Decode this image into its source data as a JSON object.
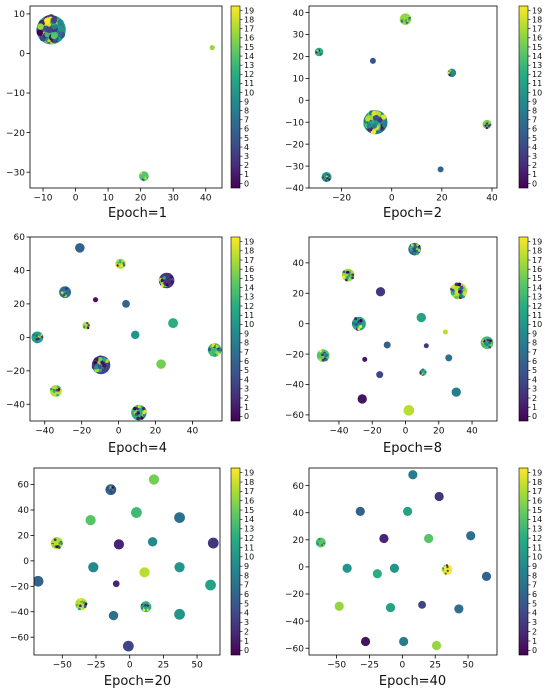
{
  "colormap": {
    "name": "viridis",
    "min": 0,
    "max": 19,
    "stops": [
      "#440154",
      "#472c7a",
      "#3b518b",
      "#2c718e",
      "#21908d",
      "#27ad81",
      "#5cc863",
      "#aadc32",
      "#fde725"
    ],
    "tick_labels": [
      "0",
      "1",
      "2",
      "3",
      "4",
      "5",
      "6",
      "7",
      "8",
      "9",
      "10",
      "11",
      "12",
      "13",
      "14",
      "15",
      "16",
      "17",
      "18",
      "19"
    ]
  },
  "chart_data": [
    {
      "type": "scatter",
      "caption": "Epoch=1",
      "xlim": [
        -14,
        45
      ],
      "ylim": [
        -34,
        12
      ],
      "xticks": [
        -10,
        0,
        10,
        20,
        30,
        40
      ],
      "yticks": [
        -30,
        -20,
        -10,
        0,
        10
      ],
      "clusters": [
        {
          "x": -7.5,
          "y": 6,
          "r": 4.5,
          "mixed": true,
          "c": 10
        },
        {
          "x": 21,
          "y": -31,
          "r": 1.5,
          "mixed": true,
          "c": 14
        },
        {
          "x": 42,
          "y": 1.5,
          "r": 0.8,
          "mixed": false,
          "c": 16
        }
      ]
    },
    {
      "type": "scatter",
      "caption": "Epoch=2",
      "xlim": [
        -33,
        42
      ],
      "ylim": [
        -40,
        43
      ],
      "xticks": [
        -20,
        0,
        20,
        40
      ],
      "yticks": [
        -40,
        -30,
        -20,
        -10,
        0,
        10,
        20,
        30,
        40
      ],
      "clusters": [
        {
          "x": 5.5,
          "y": 37,
          "r": 2.3,
          "mixed": true,
          "c": 16
        },
        {
          "x": -29,
          "y": 22,
          "r": 1.7,
          "mixed": true,
          "c": 12
        },
        {
          "x": -7.5,
          "y": 18,
          "r": 1.2,
          "mixed": false,
          "c": 5
        },
        {
          "x": 24,
          "y": 12.5,
          "r": 1.7,
          "mixed": true,
          "c": 9
        },
        {
          "x": -6.5,
          "y": -10,
          "r": 4.8,
          "mixed": true,
          "c": 8
        },
        {
          "x": 38,
          "y": -11,
          "r": 1.8,
          "mixed": true,
          "c": 15
        },
        {
          "x": 19.5,
          "y": -31.5,
          "r": 1.2,
          "mixed": false,
          "c": 6
        },
        {
          "x": -26,
          "y": -35,
          "r": 2.0,
          "mixed": true,
          "c": 10
        }
      ]
    },
    {
      "type": "scatter",
      "caption": "Epoch=4",
      "xlim": [
        -48,
        56
      ],
      "ylim": [
        -50,
        60
      ],
      "xticks": [
        -40,
        -20,
        0,
        20,
        40
      ],
      "yticks": [
        -40,
        -20,
        0,
        20,
        40,
        60
      ],
      "clusters": [
        {
          "x": -21,
          "y": 53.5,
          "r": 2.6,
          "mixed": false,
          "c": 6
        },
        {
          "x": 1,
          "y": 44,
          "r": 2.8,
          "mixed": true,
          "c": 17
        },
        {
          "x": -29,
          "y": 27,
          "r": 3.2,
          "mixed": true,
          "c": 7
        },
        {
          "x": 26,
          "y": 34,
          "r": 4.2,
          "mixed": true,
          "c": 3
        },
        {
          "x": -12.5,
          "y": 22.5,
          "r": 1.4,
          "mixed": false,
          "c": 1
        },
        {
          "x": 4,
          "y": 20,
          "r": 2.1,
          "mixed": false,
          "c": 6
        },
        {
          "x": 29.5,
          "y": 8.5,
          "r": 2.7,
          "mixed": false,
          "c": 12
        },
        {
          "x": -17.5,
          "y": 7,
          "r": 2.1,
          "mixed": true,
          "c": 17
        },
        {
          "x": 9,
          "y": 1.5,
          "r": 2.3,
          "mixed": false,
          "c": 10
        },
        {
          "x": -44,
          "y": 0,
          "r": 3.2,
          "mixed": true,
          "c": 11
        },
        {
          "x": 52,
          "y": -7.5,
          "r": 3.7,
          "mixed": true,
          "c": 13
        },
        {
          "x": -9.5,
          "y": -16.5,
          "r": 5.0,
          "mixed": true,
          "c": 4
        },
        {
          "x": 23,
          "y": -16,
          "r": 2.6,
          "mixed": false,
          "c": 15
        },
        {
          "x": -34,
          "y": -32,
          "r": 3.2,
          "mixed": true,
          "c": 17
        },
        {
          "x": 11,
          "y": -45,
          "r": 4.2,
          "mixed": true,
          "c": 12
        }
      ]
    },
    {
      "type": "scatter",
      "caption": "Epoch=8",
      "xlim": [
        -58,
        55
      ],
      "ylim": [
        -64,
        57
      ],
      "xticks": [
        -40,
        -20,
        0,
        20,
        40
      ],
      "yticks": [
        -60,
        -40,
        -20,
        0,
        20,
        40
      ],
      "clusters": [
        {
          "x": 5.5,
          "y": 49,
          "r": 3.8,
          "mixed": true,
          "c": 6
        },
        {
          "x": -34.5,
          "y": 32,
          "r": 3.8,
          "mixed": true,
          "c": 16
        },
        {
          "x": 32,
          "y": 21.5,
          "r": 5.0,
          "mixed": true,
          "c": 17
        },
        {
          "x": -15,
          "y": 21,
          "r": 2.8,
          "mixed": false,
          "c": 3
        },
        {
          "x": 9.5,
          "y": 4,
          "r": 2.8,
          "mixed": false,
          "c": 11
        },
        {
          "x": -28,
          "y": 0,
          "r": 4.2,
          "mixed": true,
          "c": 11
        },
        {
          "x": 24,
          "y": -5.5,
          "r": 1.0,
          "mixed": false,
          "c": 17
        },
        {
          "x": -11,
          "y": -14,
          "r": 2.1,
          "mixed": false,
          "c": 6
        },
        {
          "x": 12.5,
          "y": -14.5,
          "r": 1.0,
          "mixed": false,
          "c": 3
        },
        {
          "x": 49,
          "y": -12.5,
          "r": 3.8,
          "mixed": true,
          "c": 13
        },
        {
          "x": -49.5,
          "y": -21,
          "r": 3.8,
          "mixed": true,
          "c": 14
        },
        {
          "x": -24.5,
          "y": -23.5,
          "r": 1.0,
          "mixed": false,
          "c": 1
        },
        {
          "x": 26,
          "y": -22.5,
          "r": 2.1,
          "mixed": false,
          "c": 7
        },
        {
          "x": -15.5,
          "y": -33.5,
          "r": 2.1,
          "mixed": false,
          "c": 4
        },
        {
          "x": 10.5,
          "y": -32,
          "r": 2.1,
          "mixed": true,
          "c": 12
        },
        {
          "x": 30.5,
          "y": -45,
          "r": 2.8,
          "mixed": false,
          "c": 8
        },
        {
          "x": -26,
          "y": -49.5,
          "r": 2.8,
          "mixed": false,
          "c": 1
        },
        {
          "x": 2,
          "y": -57,
          "r": 3.2,
          "mixed": false,
          "c": 17
        }
      ]
    },
    {
      "type": "scatter",
      "caption": "Epoch=20",
      "xlim": [
        -71,
        67
      ],
      "ylim": [
        -74,
        73
      ],
      "xticks": [
        -50,
        -25,
        0,
        25,
        50
      ],
      "yticks": [
        -60,
        -40,
        -20,
        0,
        20,
        40,
        60
      ],
      "clusters": [
        {
          "x": 18,
          "y": 64,
          "r": 3.8,
          "mixed": false,
          "c": 15
        },
        {
          "x": -14,
          "y": 56,
          "r": 4.0,
          "mixed": true,
          "c": 5
        },
        {
          "x": 5,
          "y": 38,
          "r": 4.0,
          "mixed": false,
          "c": 13
        },
        {
          "x": -29,
          "y": 32,
          "r": 3.8,
          "mixed": false,
          "c": 14
        },
        {
          "x": 37,
          "y": 34,
          "r": 4.0,
          "mixed": false,
          "c": 7
        },
        {
          "x": 17,
          "y": 15,
          "r": 3.5,
          "mixed": false,
          "c": 9
        },
        {
          "x": -54,
          "y": 14,
          "r": 4.5,
          "mixed": true,
          "c": 17
        },
        {
          "x": -8,
          "y": 13,
          "r": 3.8,
          "mixed": false,
          "c": 2
        },
        {
          "x": 62,
          "y": 14,
          "r": 4.0,
          "mixed": false,
          "c": 3
        },
        {
          "x": -27,
          "y": -5,
          "r": 3.8,
          "mixed": false,
          "c": 9
        },
        {
          "x": 37,
          "y": -5,
          "r": 3.8,
          "mixed": false,
          "c": 10
        },
        {
          "x": 11,
          "y": -9,
          "r": 3.8,
          "mixed": false,
          "c": 17
        },
        {
          "x": -68,
          "y": -16,
          "r": 4.0,
          "mixed": false,
          "c": 6
        },
        {
          "x": -10,
          "y": -18,
          "r": 2.5,
          "mixed": false,
          "c": 2
        },
        {
          "x": 60,
          "y": -19,
          "r": 4.0,
          "mixed": false,
          "c": 11
        },
        {
          "x": -36,
          "y": -34,
          "r": 4.5,
          "mixed": true,
          "c": 17
        },
        {
          "x": 12,
          "y": -36,
          "r": 4.0,
          "mixed": true,
          "c": 12
        },
        {
          "x": -12,
          "y": -43,
          "r": 3.5,
          "mixed": false,
          "c": 7
        },
        {
          "x": 37,
          "y": -42,
          "r": 4.0,
          "mixed": false,
          "c": 10
        },
        {
          "x": -1,
          "y": -67,
          "r": 4.0,
          "mixed": false,
          "c": 4
        }
      ]
    },
    {
      "type": "scatter",
      "caption": "Epoch=40",
      "xlim": [
        -71,
        72
      ],
      "ylim": [
        -65,
        73
      ],
      "xticks": [
        -50,
        -25,
        0,
        25,
        50
      ],
      "yticks": [
        -60,
        -40,
        -20,
        0,
        20,
        40,
        60
      ],
      "clusters": [
        {
          "x": 8,
          "y": 68,
          "r": 3.5,
          "mixed": false,
          "c": 8
        },
        {
          "x": 28,
          "y": 52,
          "r": 3.5,
          "mixed": false,
          "c": 3
        },
        {
          "x": -32,
          "y": 41,
          "r": 3.5,
          "mixed": false,
          "c": 6
        },
        {
          "x": 4,
          "y": 41,
          "r": 3.5,
          "mixed": false,
          "c": 11
        },
        {
          "x": 52,
          "y": 23,
          "r": 3.5,
          "mixed": false,
          "c": 7
        },
        {
          "x": -14,
          "y": 21,
          "r": 3.5,
          "mixed": false,
          "c": 2
        },
        {
          "x": 20,
          "y": 21,
          "r": 3.5,
          "mixed": false,
          "c": 14
        },
        {
          "x": -62,
          "y": 18,
          "r": 3.8,
          "mixed": true,
          "c": 14
        },
        {
          "x": -42,
          "y": -1,
          "r": 3.5,
          "mixed": false,
          "c": 10
        },
        {
          "x": -6,
          "y": -1,
          "r": 3.5,
          "mixed": false,
          "c": 10
        },
        {
          "x": 34,
          "y": -2,
          "r": 4.0,
          "mixed": true,
          "c": 19
        },
        {
          "x": -19,
          "y": -5,
          "r": 3.5,
          "mixed": false,
          "c": 12
        },
        {
          "x": 64,
          "y": -7,
          "r": 3.5,
          "mixed": false,
          "c": 6
        },
        {
          "x": -48,
          "y": -29,
          "r": 3.5,
          "mixed": false,
          "c": 16
        },
        {
          "x": -9,
          "y": -30,
          "r": 3.5,
          "mixed": false,
          "c": 11
        },
        {
          "x": 15,
          "y": -28,
          "r": 3.0,
          "mixed": false,
          "c": 4
        },
        {
          "x": 43,
          "y": -31,
          "r": 3.5,
          "mixed": false,
          "c": 7
        },
        {
          "x": -28,
          "y": -55,
          "r": 3.5,
          "mixed": false,
          "c": 1
        },
        {
          "x": 1,
          "y": -55,
          "r": 3.5,
          "mixed": false,
          "c": 8
        },
        {
          "x": 26,
          "y": -58,
          "r": 3.5,
          "mixed": false,
          "c": 16
        }
      ]
    }
  ]
}
